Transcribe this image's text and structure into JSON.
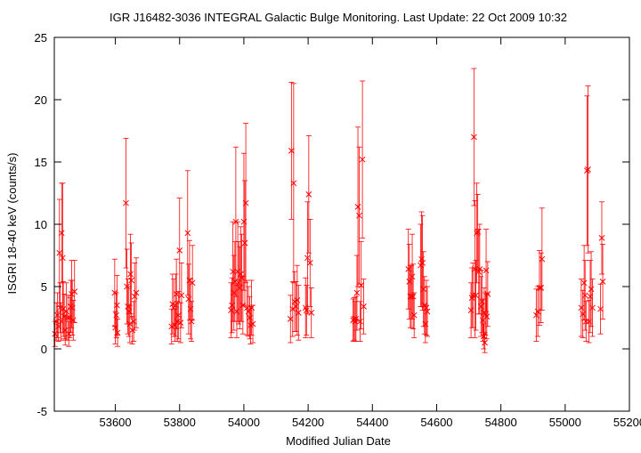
{
  "chart_data": {
    "type": "scatter",
    "title": "IGR J16482-3036   INTEGRAL Galactic Bulge Monitoring.  Last Update: 22 Oct 2009 10:32",
    "xlabel": "Modified Julian Date",
    "ylabel": "ISGRI 18-40 keV (counts/s)",
    "xlim": [
      53410,
      55200
    ],
    "ylim": [
      -5,
      25
    ],
    "xticks": [
      53600,
      53800,
      54000,
      54200,
      54400,
      54600,
      54800,
      55000,
      55200
    ],
    "xtick_labels": [
      "53600",
      "53800",
      "54000",
      "54200",
      "54400",
      "54600",
      "54800",
      "55000",
      "55200"
    ],
    "yticks": [
      -5,
      0,
      5,
      10,
      15,
      20,
      25
    ],
    "ytick_labels": [
      "-5",
      "0",
      "5",
      "10",
      "15",
      "20",
      "25"
    ],
    "grid": false,
    "marker": "x",
    "color": "#ff0000",
    "series": [
      {
        "x": [
          53412,
          53416,
          53420,
          53423,
          53426,
          53428,
          53431,
          53433,
          53436,
          53438,
          53441,
          53444,
          53447,
          53452,
          53455,
          53458,
          53461,
          53464,
          53466,
          53469,
          53473,
          53598,
          53600,
          53603,
          53605,
          53607,
          53633,
          53636,
          53639,
          53642,
          53645,
          53647,
          53650,
          53653,
          53657,
          53660,
          53665,
          53775,
          53778,
          53782,
          53785,
          53788,
          53790,
          53793,
          53796,
          53800,
          53803,
          53806,
          53825,
          53828,
          53831,
          53834,
          53837,
          53840,
          53960,
          53963,
          53966,
          53969,
          53972,
          53975,
          53978,
          53981,
          53984,
          53987,
          53990,
          53993,
          53997,
          54000,
          54003,
          54006,
          54010,
          54014,
          54018,
          54021,
          54024,
          54028,
          54145,
          54148,
          54152,
          54155,
          54158,
          54162,
          54166,
          54170,
          54192,
          54195,
          54198,
          54202,
          54206,
          54210,
          54340,
          54343,
          54346,
          54349,
          54352,
          54355,
          54359,
          54362,
          54365,
          54369,
          54373,
          54512,
          54515,
          54518,
          54521,
          54524,
          54527,
          54530,
          54550,
          54553,
          54556,
          54559,
          54562,
          54565,
          54568,
          54571,
          54707,
          54710,
          54713,
          54716,
          54719,
          54722,
          54725,
          54728,
          54731,
          54734,
          54738,
          54741,
          54744,
          54746,
          54748,
          54750,
          54752,
          54754,
          54756,
          54759,
          54910,
          54915,
          54920,
          54925,
          54928,
          55050,
          55055,
          55059,
          55062,
          55065,
          55068,
          55071,
          55074,
          55078,
          55081,
          55085,
          55110,
          55114,
          55117
        ],
        "y": [
          1.2,
          2.2,
          2.7,
          1.8,
          7.7,
          3.3,
          2.2,
          9.3,
          7.3,
          3.2,
          2.6,
          1.5,
          3.0,
          2.5,
          1.2,
          2.5,
          3.4,
          4.4,
          3.3,
          2.3,
          4.6,
          4.5,
          1.7,
          2.7,
          3.5,
          1.3,
          11.7,
          5.0,
          3.4,
          3.0,
          2.0,
          6.0,
          5.5,
          1.5,
          2.2,
          4.2,
          4.5,
          1.8,
          3.6,
          3.3,
          1.9,
          3.5,
          4.4,
          2.2,
          2.7,
          7.9,
          2.1,
          4.3,
          9.3,
          4.0,
          5.5,
          3.2,
          2.2,
          5.3,
          3.1,
          3.5,
          6.2,
          4.5,
          5.4,
          10.2,
          3.0,
          6.2,
          5.3,
          4.9,
          6.0,
          5.7,
          3.5,
          10.2,
          8.5,
          11.7,
          3.3,
          3.0,
          2.5,
          1.9,
          3.3,
          2.0,
          2.4,
          15.9,
          3.2,
          13.3,
          3.8,
          3.4,
          3.9,
          2.9,
          3.3,
          3.1,
          7.3,
          12.4,
          6.9,
          2.9,
          2.3,
          2.4,
          2.2,
          2.4,
          4.5,
          11.4,
          10.7,
          2.2,
          5.1,
          15.2,
          3.4,
          6.4,
          5.4,
          4.2,
          4.2,
          5.8,
          4.2,
          2.7,
          6.7,
          7.2,
          6.9,
          4.8,
          3.5,
          2.0,
          3.3,
          3.0,
          3.1,
          4.1,
          4.3,
          17.0,
          6.4,
          4.3,
          9.3,
          9.4,
          6.2,
          6.4,
          3.4,
          3.8,
          2.3,
          1.0,
          2.9,
          0.5,
          2.8,
          6.3,
          2.6,
          4.4,
          2.7,
          3.0,
          4.9,
          4.9,
          7.2,
          3.3,
          2.8,
          5.3,
          4.3,
          2.2,
          14.3,
          14.4,
          2.2,
          4.2,
          4.8,
          3.3,
          3.2,
          8.9,
          5.4
        ],
        "yerr": [
          1.0,
          1.5,
          1.8,
          1.2,
          4.3,
          2.0,
          1.5,
          4.0,
          6.0,
          2.2,
          1.8,
          1.2,
          2.3,
          1.8,
          1.0,
          1.6,
          2.1,
          2.7,
          2.2,
          1.6,
          2.5,
          2.7,
          1.3,
          1.8,
          2.4,
          1.1,
          5.2,
          3.0,
          2.2,
          2.0,
          1.5,
          3.2,
          3.0,
          1.1,
          1.6,
          2.7,
          2.8,
          1.4,
          2.4,
          2.3,
          1.3,
          2.5,
          2.8,
          1.6,
          1.9,
          4.2,
          1.6,
          2.6,
          5.0,
          2.8,
          3.2,
          2.4,
          1.6,
          3.0,
          2.2,
          2.2,
          4.0,
          3.0,
          3.2,
          6.0,
          2.1,
          4.0,
          3.3,
          3.3,
          3.8,
          3.5,
          2.3,
          5.5,
          5.0,
          6.4,
          2.2,
          2.0,
          1.7,
          1.5,
          2.2,
          1.5,
          1.9,
          5.5,
          2.2,
          8.0,
          2.4,
          2.0,
          2.8,
          2.2,
          2.4,
          2.0,
          4.5,
          4.7,
          3.5,
          2.0,
          1.7,
          1.7,
          1.6,
          1.8,
          3.0,
          6.4,
          5.5,
          1.6,
          3.5,
          6.3,
          2.2,
          3.2,
          3.0,
          2.5,
          2.5,
          3.4,
          2.6,
          1.8,
          3.3,
          3.8,
          3.8,
          3.0,
          2.3,
          1.5,
          2.2,
          2.0,
          2.2,
          2.4,
          2.6,
          5.5,
          5.5,
          2.8,
          4.0,
          3.0,
          3.4,
          3.6,
          2.4,
          2.5,
          1.7,
          1.0,
          2.0,
          0.8,
          1.7,
          3.3,
          1.8,
          2.6,
          2.1,
          2.0,
          3.0,
          2.8,
          4.1,
          2.3,
          1.9,
          3.0,
          2.8,
          1.6,
          6.0,
          6.7,
          1.7,
          2.9,
          3.0,
          2.3,
          2.0,
          2.9,
          3.0
        ]
      }
    ]
  }
}
